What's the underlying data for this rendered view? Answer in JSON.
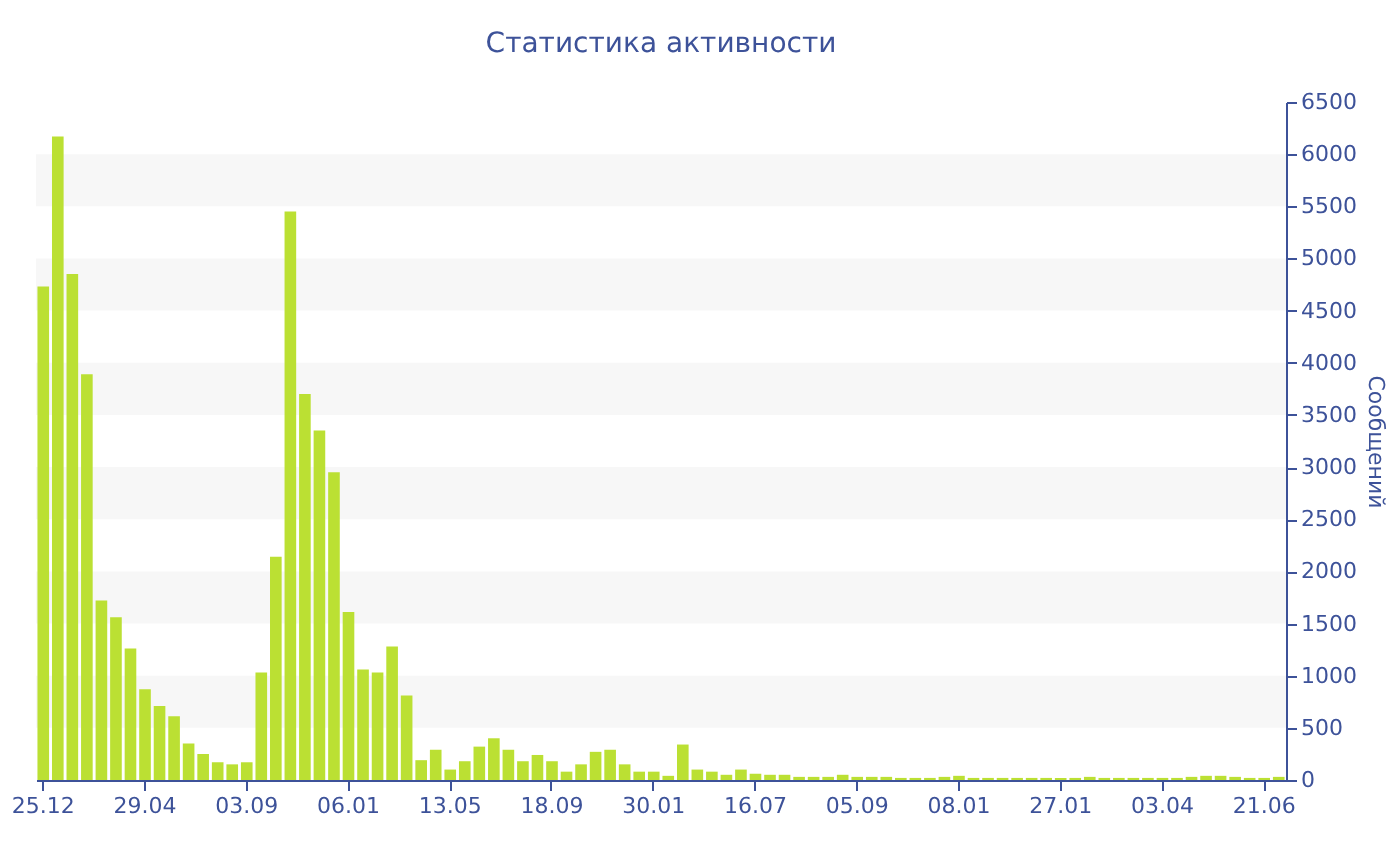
{
  "chart_data": {
    "type": "bar",
    "title": "Статистика активности",
    "ylabel": "Сообщений",
    "categories": [
      "25.12",
      null,
      null,
      null,
      null,
      null,
      null,
      "29.04",
      null,
      null,
      null,
      null,
      null,
      null,
      "03.09",
      null,
      null,
      null,
      null,
      null,
      null,
      "06.01",
      null,
      null,
      null,
      null,
      null,
      null,
      "13.05",
      null,
      null,
      null,
      null,
      null,
      null,
      "18.09",
      null,
      null,
      null,
      null,
      null,
      null,
      "30.01",
      null,
      null,
      null,
      null,
      null,
      null,
      "16.07",
      null,
      null,
      null,
      null,
      null,
      null,
      "05.09",
      null,
      null,
      null,
      null,
      null,
      null,
      "08.01",
      null,
      null,
      null,
      null,
      null,
      null,
      "27.01",
      null,
      null,
      null,
      null,
      null,
      null,
      "03.04",
      null,
      null,
      null,
      null,
      null,
      null,
      "21.06",
      null
    ],
    "values": [
      4730,
      6170,
      4850,
      3890,
      1720,
      1560,
      1260,
      870,
      710,
      610,
      350,
      250,
      170,
      150,
      170,
      1030,
      2140,
      5450,
      3700,
      3350,
      2950,
      1610,
      1060,
      1030,
      1280,
      810,
      190,
      290,
      100,
      180,
      320,
      400,
      290,
      180,
      240,
      180,
      80,
      150,
      270,
      290,
      150,
      80,
      80,
      40,
      340,
      100,
      80,
      50,
      100,
      60,
      50,
      50,
      30,
      30,
      30,
      50,
      30,
      30,
      30,
      20,
      20,
      20,
      30,
      40,
      20,
      20,
      20,
      20,
      20,
      20,
      20,
      20,
      30,
      20,
      20,
      20,
      20,
      20,
      20,
      30,
      40,
      40,
      30,
      20,
      20,
      30
    ],
    "color": "#bbe033",
    "ylim": [
      0,
      6500
    ],
    "yticks": [
      0,
      500,
      1000,
      1500,
      2000,
      2500,
      3000,
      3500,
      4000,
      4500,
      5000,
      5500,
      6000,
      6500
    ],
    "bands": [
      {
        "axis": "y",
        "from": 500,
        "to": 1000,
        "color": "#f7f7f7"
      },
      {
        "axis": "y",
        "from": 1500,
        "to": 2000,
        "color": "#f7f7f7"
      },
      {
        "axis": "y",
        "from": 2500,
        "to": 3000,
        "color": "#f7f7f7"
      },
      {
        "axis": "y",
        "from": 3500,
        "to": 4000,
        "color": "#f7f7f7"
      },
      {
        "axis": "y",
        "from": 4500,
        "to": 5000,
        "color": "#f7f7f7"
      },
      {
        "axis": "y",
        "from": 5500,
        "to": 6000,
        "color": "#f7f7f7"
      }
    ],
    "grid": false
  }
}
